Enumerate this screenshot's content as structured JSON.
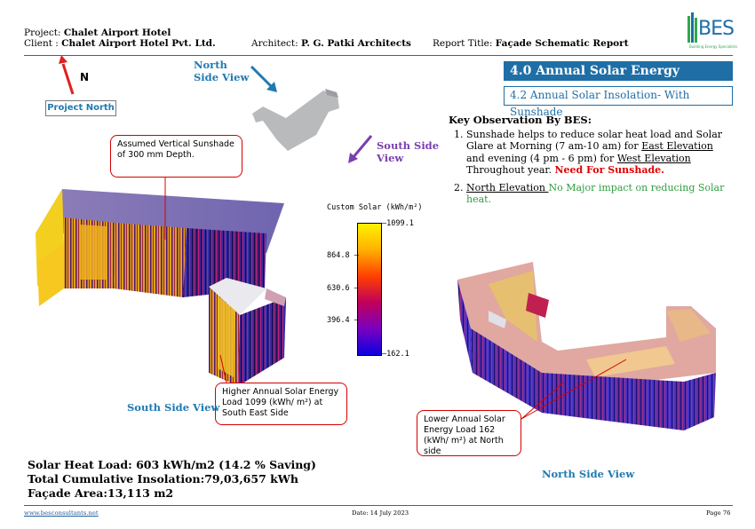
{
  "header": {
    "project_label": "Project:",
    "project_value": "Chalet Airport Hotel",
    "client_label": "Client  :",
    "client_value": "Chalet Airport Hotel Pvt. Ltd.",
    "architect_label": "Architect:",
    "architect_value": "P. G. Patki Architects",
    "report_label": "Report Title:",
    "report_value": "Façade Schematic Report",
    "logo_text": "BES",
    "logo_tagline": "Building Energy Specialists"
  },
  "section": {
    "title": "4.0 Annual Solar Energy",
    "subtitle": "4.2 Annual Solar Insolation- With Sunshade"
  },
  "observations": {
    "heading": "Key Observation By BES:",
    "item1_pre": "Sunshade helps to reduce solar heat load and Solar Glare at Morning (7 am-10 am) for ",
    "item1_east": "East Elevation ",
    "item1_mid": "and evening (4 pm - 6 pm) for ",
    "item1_west": "West Elevation",
    "item1_post": " Throughout year. ",
    "item1_need": "Need For Sunshade.",
    "item2_north": "North Elevation ",
    "item2_rest": " No Major impact on reducing Solar heat."
  },
  "site": {
    "north_letter": "N",
    "project_north": "Project North",
    "north_view_line1": "North",
    "north_view_line2": "Side View",
    "south_view_line1": "South Side",
    "south_view_line2": "View"
  },
  "callouts": {
    "sunshade": "Assumed Vertical Sunshade of 300 mm Depth.",
    "higher": "Higher Annual Solar Energy Load 1099 (kWh/ m²) at South East Side",
    "lower": "Lower Annual Solar Energy Load 162 (kWh/ m²) at North side"
  },
  "legend": {
    "title": "Custom Solar (kWh/m²)",
    "max": "1099.1",
    "t1": "864.8",
    "t2": "630.6",
    "t3": "396.4",
    "min": "162.1"
  },
  "views": {
    "south": "South Side View",
    "north": "North Side View"
  },
  "stats": {
    "heat_load": "Solar Heat Load: 603 kWh/m2 (14.2 % Saving)",
    "insolation": "Total Cumulative Insolation:79,03,657 kWh",
    "facade_area": "Façade Area:13,113 m2"
  },
  "footer": {
    "website": "www.besconsultants.net",
    "date": "Date: 14 July 2023",
    "page": "Page 76"
  },
  "colors": {
    "accent": "#1f6ea6",
    "callout_border": "#d40000"
  }
}
